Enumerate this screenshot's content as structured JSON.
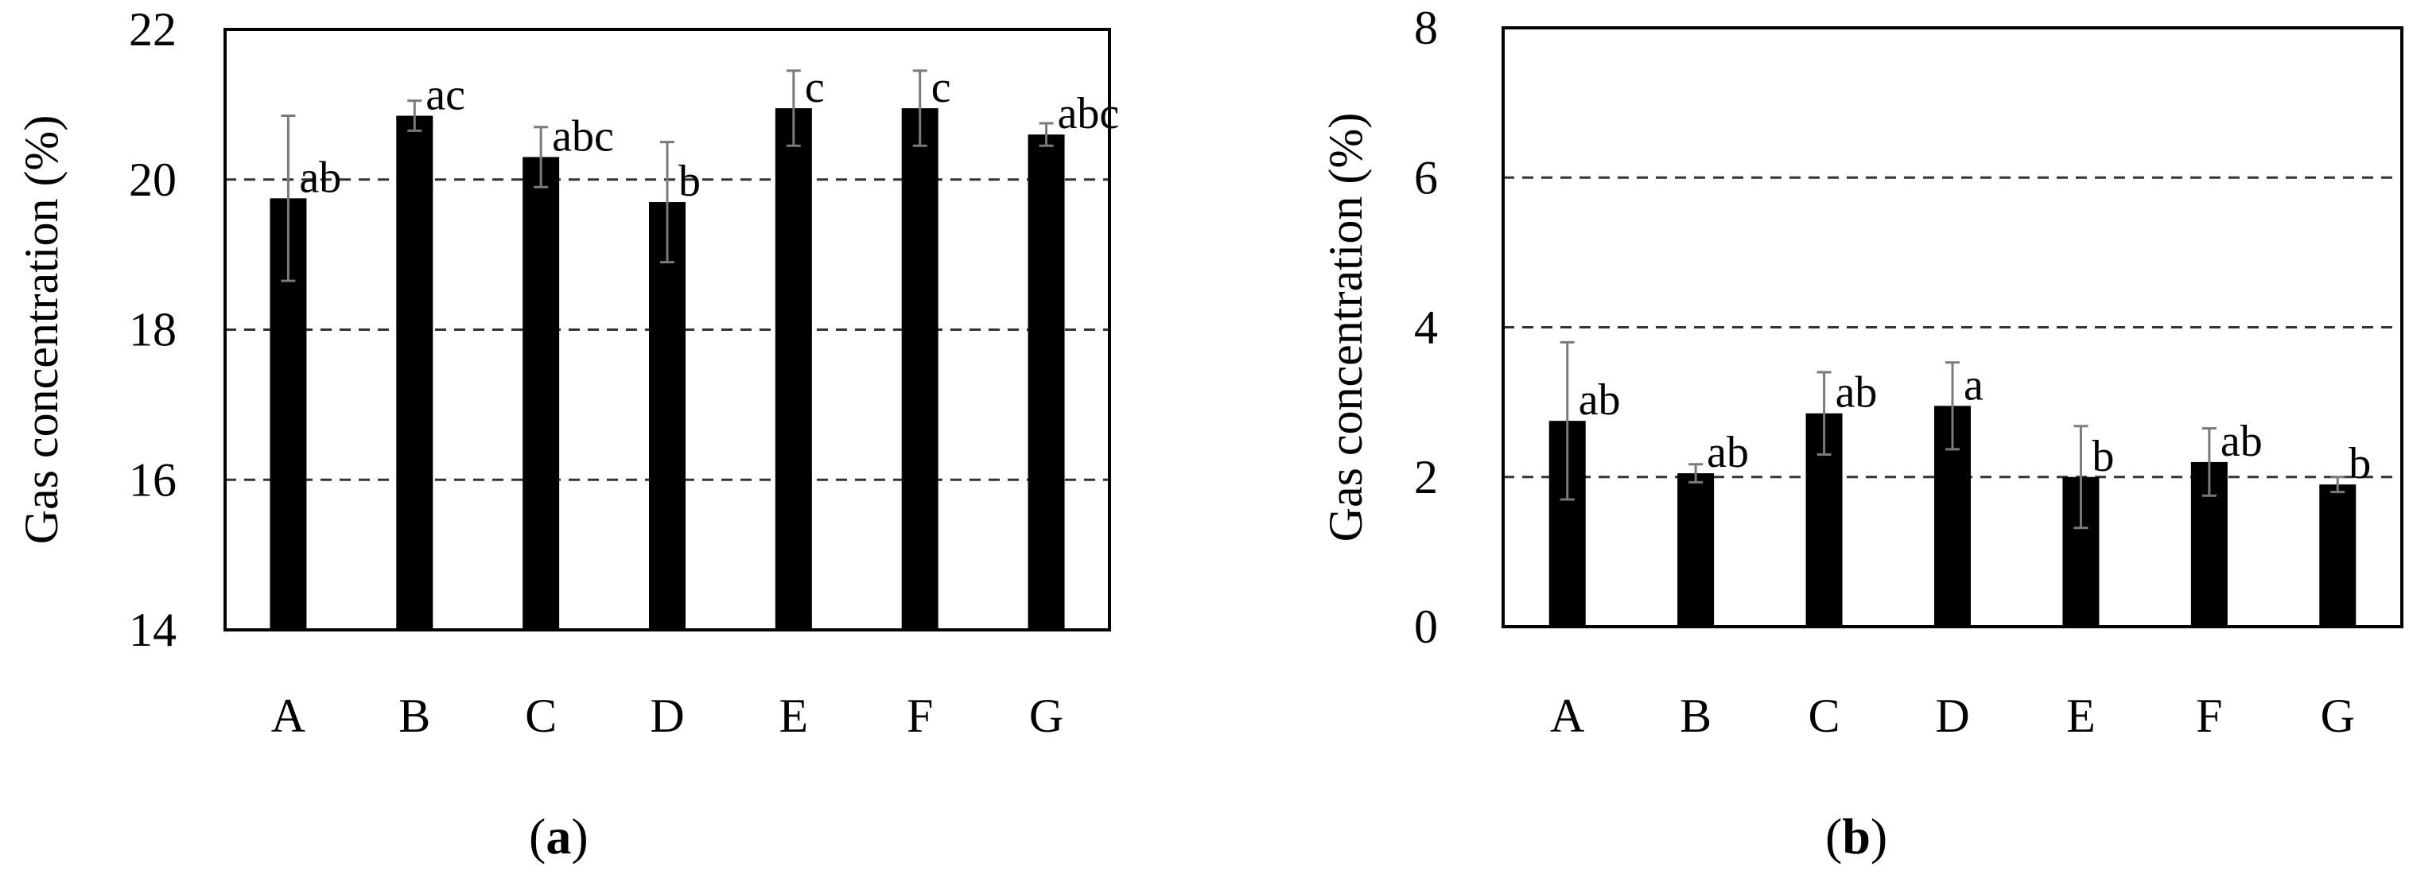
{
  "chart_data": [
    {
      "type": "bar",
      "panel_label": "a",
      "ylabel": "Gas concentration (%)",
      "xlabel": "",
      "categories": [
        "A",
        "B",
        "C",
        "D",
        "E",
        "F",
        "G"
      ],
      "values": [
        19.75,
        20.85,
        20.3,
        19.7,
        20.95,
        20.95,
        20.6
      ],
      "errors": [
        1.1,
        0.2,
        0.4,
        0.8,
        0.5,
        0.5,
        0.15
      ],
      "letters": [
        "ab",
        "ac",
        "abc",
        "b",
        "c",
        "c",
        "abc"
      ],
      "ylim": [
        14,
        22
      ],
      "yticks": [
        14,
        16,
        18,
        20,
        22
      ],
      "gridlines": [
        16,
        18,
        20
      ],
      "grid": "dashed horizontal"
    },
    {
      "type": "bar",
      "panel_label": "b",
      "ylabel": "Gas concentration (%)",
      "xlabel": "",
      "categories": [
        "A",
        "B",
        "C",
        "D",
        "E",
        "F",
        "G"
      ],
      "values": [
        2.75,
        2.05,
        2.85,
        2.95,
        2.0,
        2.2,
        1.9
      ],
      "errors": [
        1.05,
        0.12,
        0.55,
        0.58,
        0.68,
        0.45,
        0.1
      ],
      "letters": [
        "ab",
        "ab",
        "ab",
        "a",
        "b",
        "ab",
        "b"
      ],
      "ylim": [
        0,
        8
      ],
      "yticks": [
        0,
        2,
        4,
        6,
        8
      ],
      "gridlines": [
        2,
        4,
        6
      ],
      "grid": "dashed horizontal"
    }
  ]
}
